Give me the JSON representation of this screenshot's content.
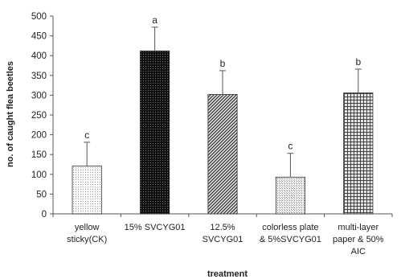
{
  "chart_data": {
    "type": "bar",
    "xlabel": "treatment",
    "ylabel": "no. of caught flea beetles",
    "ylim": [
      0,
      500
    ],
    "yticks": [
      0,
      50,
      100,
      150,
      200,
      250,
      300,
      350,
      400,
      450,
      500
    ],
    "categories": [
      [
        "yellow",
        "sticky(CK)"
      ],
      [
        "15% SVCYG01"
      ],
      [
        "12.5%",
        "SVCYG01"
      ],
      [
        "colorless plate",
        "& 5%SVCYG01"
      ],
      [
        "multi-layer",
        "paper & 50%",
        "AIC"
      ]
    ],
    "values": [
      121,
      412,
      302,
      93,
      306
    ],
    "errors": [
      60,
      60,
      60,
      60,
      60
    ],
    "significance": [
      "c",
      "a",
      "b",
      "c",
      "b"
    ],
    "fills": [
      "light-dotted",
      "dark-checkered",
      "diagonal-hatched",
      "light-cross",
      "grid-hatched"
    ],
    "grid": false
  }
}
